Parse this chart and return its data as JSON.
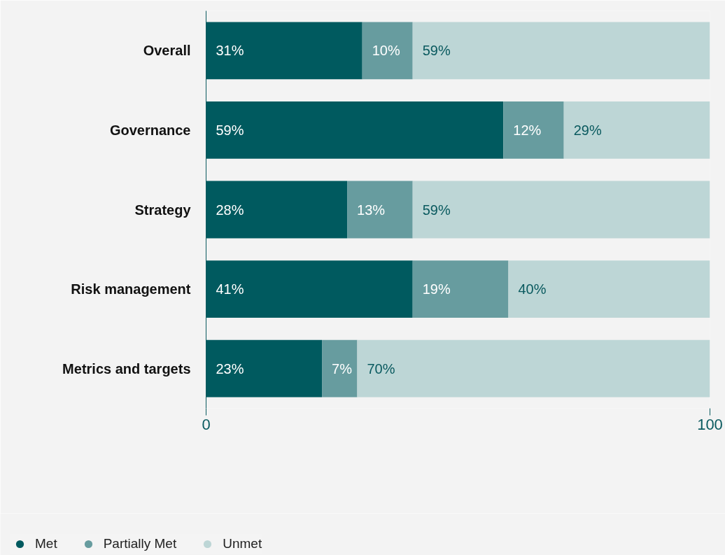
{
  "chart_data": {
    "type": "bar",
    "orientation": "horizontal",
    "stacked": true,
    "categories": [
      "Overall",
      "Governance",
      "Strategy",
      "Risk management",
      "Metrics and targets"
    ],
    "series": [
      {
        "name": "Met",
        "color": "#005a5f",
        "values": [
          31,
          59,
          28,
          41,
          23
        ],
        "value_labels": [
          "31%",
          "59%",
          "28%",
          "41%",
          "23%"
        ]
      },
      {
        "name": "Partially Met",
        "color": "#679c9f",
        "values": [
          10,
          12,
          13,
          19,
          7
        ],
        "value_labels": [
          "10%",
          "12%",
          "13%",
          "19%",
          "7%"
        ]
      },
      {
        "name": "Unmet",
        "color": "#bdd6d6",
        "values": [
          59,
          29,
          59,
          40,
          70
        ],
        "value_labels": [
          "59%",
          "29%",
          "59%",
          "40%",
          "70%"
        ]
      }
    ],
    "xlim": [
      0,
      100
    ],
    "xticks": [
      0,
      100
    ],
    "legend": "bottom left"
  }
}
